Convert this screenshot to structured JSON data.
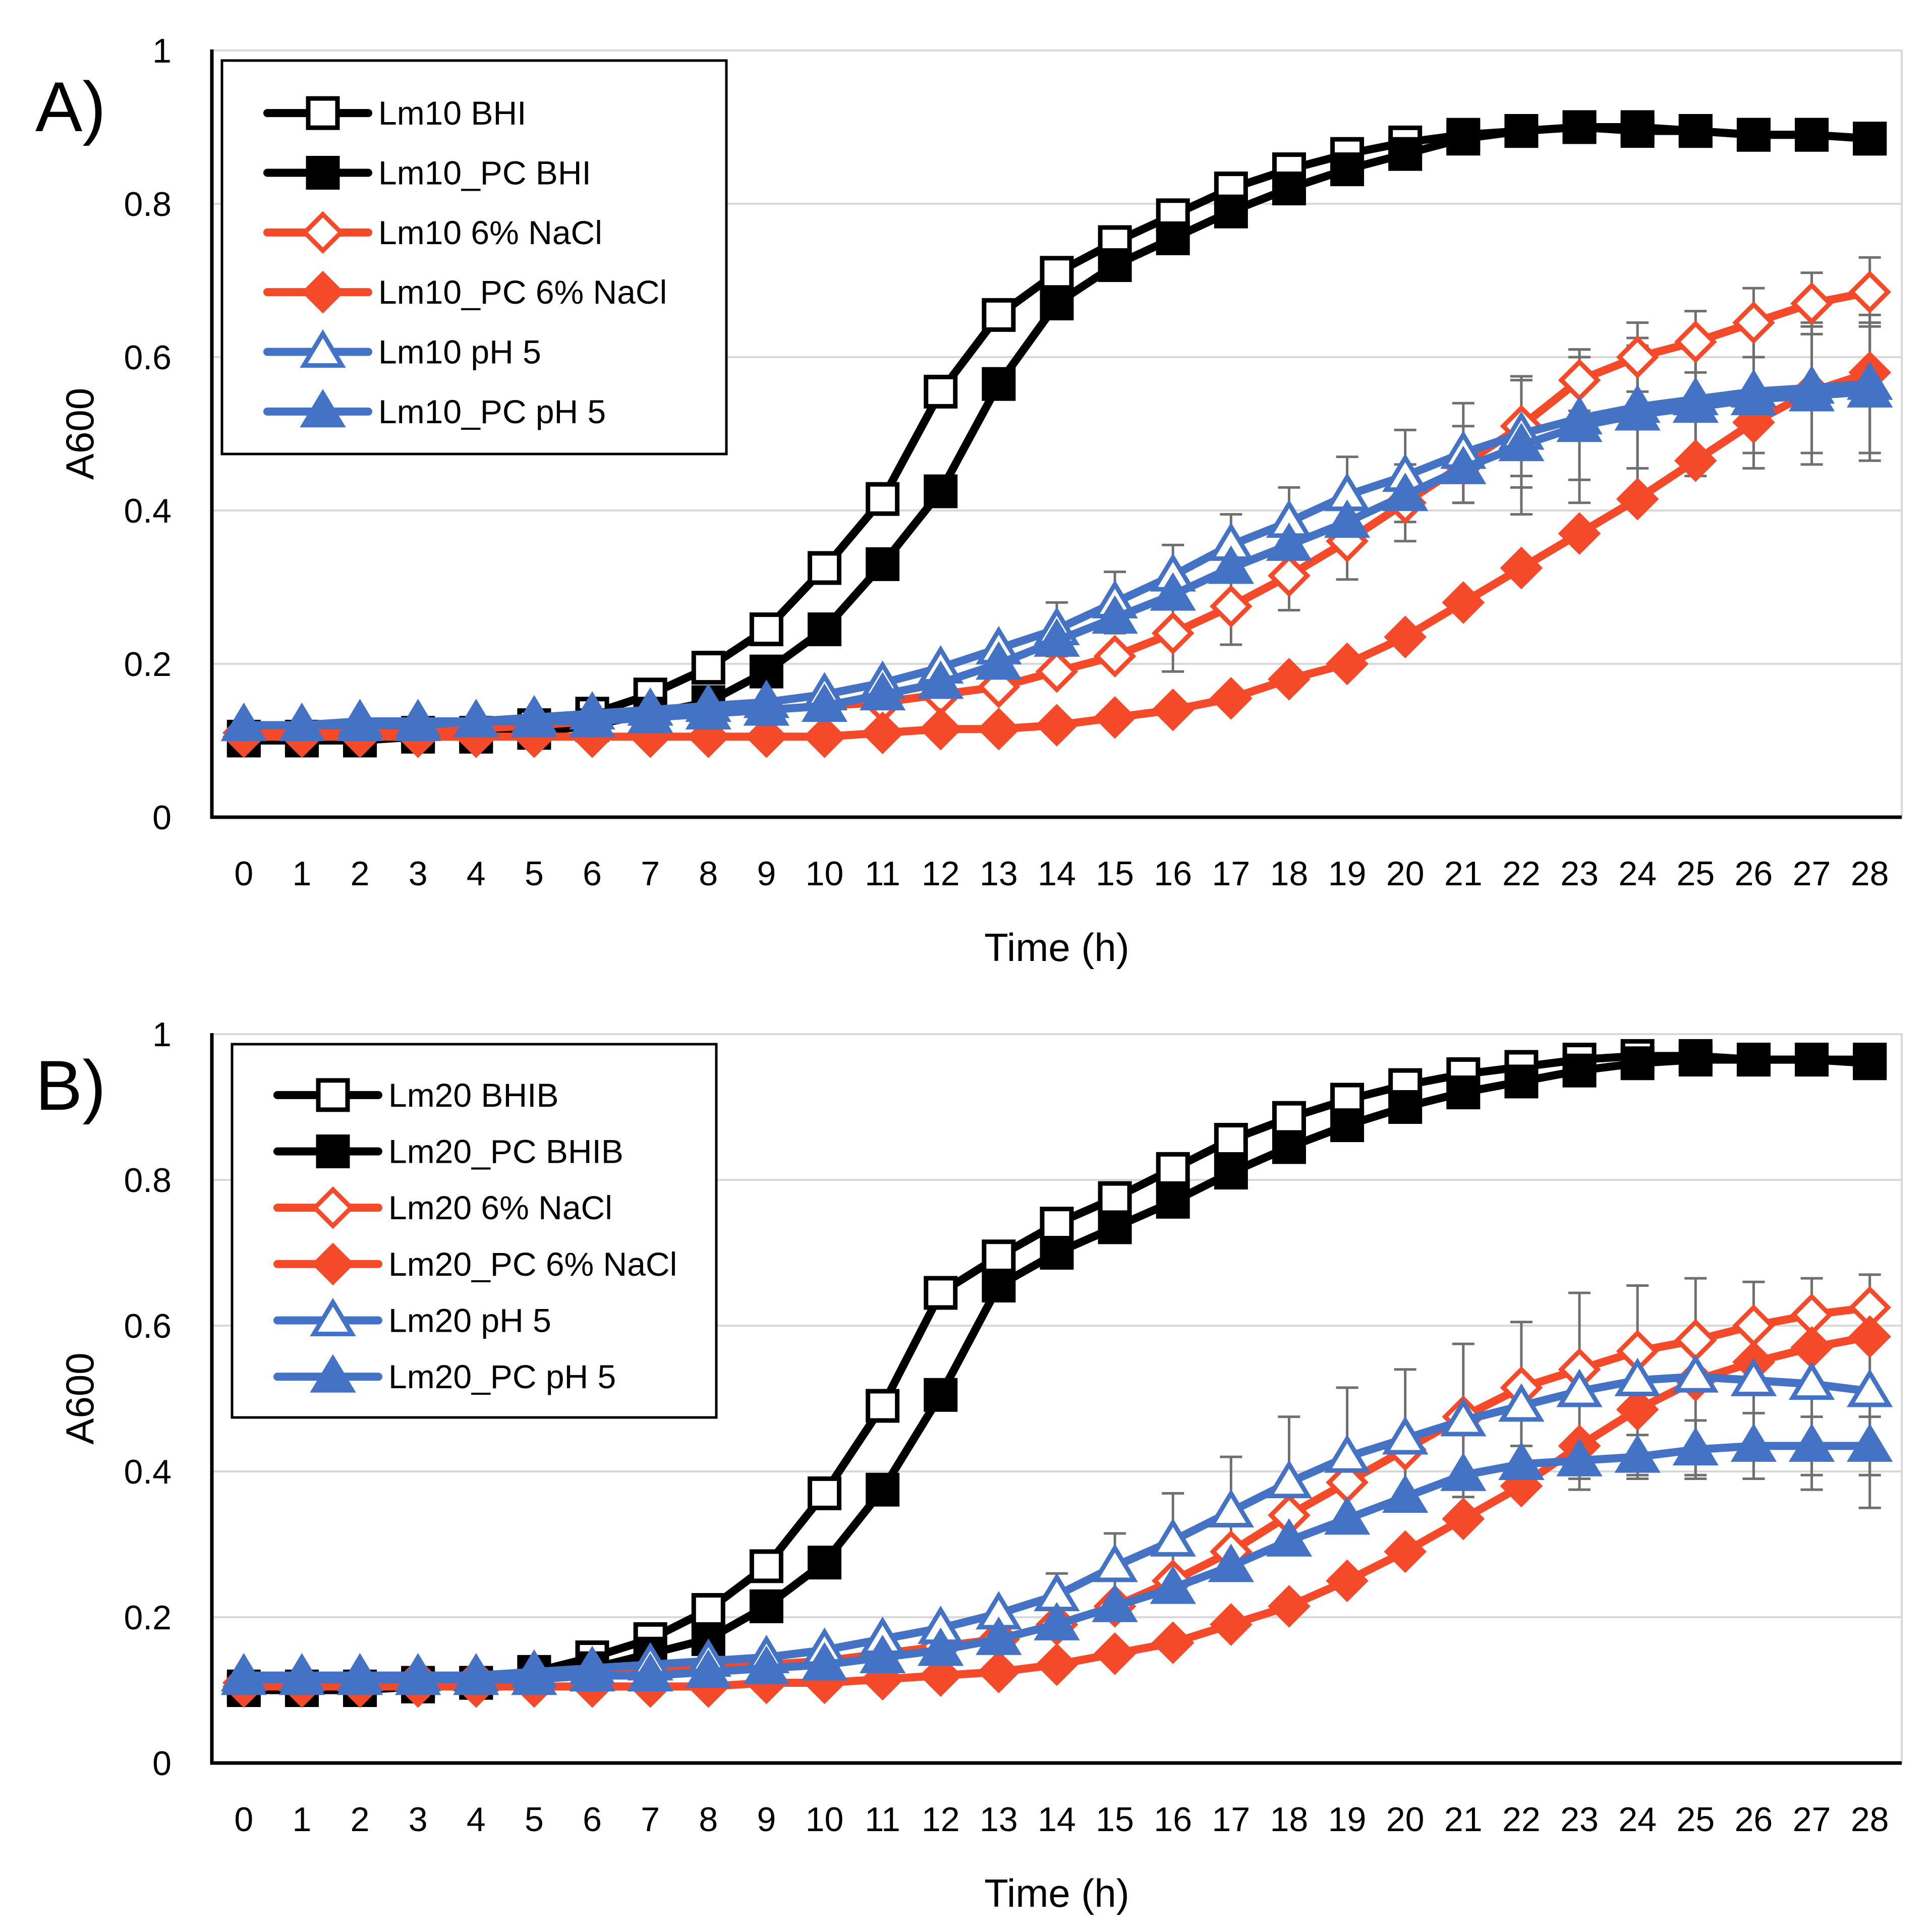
{
  "colors": {
    "black": "#000000",
    "red": "#F54A2A",
    "blue": "#4472C4",
    "grid": "#D9D9D9",
    "error": "#6F6F6F"
  },
  "chart_data": [
    {
      "type": "line",
      "panel_label": "A)",
      "xlabel": "Time (h)",
      "ylabel": "A600",
      "ylim": [
        0,
        1
      ],
      "yticks": [
        "0",
        "0.2",
        "0.4",
        "0.6",
        "0.8",
        "1"
      ],
      "grid": true,
      "legend_position": "top-left",
      "x": [
        "0",
        "1",
        "2",
        "3",
        "4",
        "5",
        "6",
        "7",
        "8",
        "9",
        "10",
        "11",
        "12",
        "13",
        "14",
        "15",
        "16",
        "17",
        "18",
        "19",
        "20",
        "21",
        "22",
        "23",
        "24",
        "25",
        "26",
        "27",
        "28"
      ],
      "series": [
        {
          "name": "Lm10 BHI",
          "color": "black",
          "marker": "square",
          "filled": false,
          "values": [
            0.105,
            0.105,
            0.105,
            0.11,
            0.11,
            0.12,
            0.135,
            0.16,
            0.195,
            0.245,
            0.325,
            0.415,
            0.555,
            0.655,
            0.71,
            0.75,
            0.785,
            0.82,
            0.845,
            0.865,
            0.88,
            0.89,
            0.895,
            0.9,
            0.9,
            0.895,
            0.89,
            0.89,
            0.885
          ],
          "errors": []
        },
        {
          "name": "Lm10_PC BHI",
          "color": "black",
          "marker": "square",
          "filled": true,
          "values": [
            0.1,
            0.1,
            0.1,
            0.105,
            0.105,
            0.11,
            0.12,
            0.135,
            0.15,
            0.19,
            0.245,
            0.33,
            0.425,
            0.565,
            0.67,
            0.72,
            0.755,
            0.79,
            0.82,
            0.845,
            0.865,
            0.885,
            0.895,
            0.9,
            0.895,
            0.895,
            0.89,
            0.89,
            0.885
          ],
          "errors": []
        },
        {
          "name": "Lm10 6% NaCl",
          "color": "red",
          "marker": "diamond",
          "filled": false,
          "values": [
            0.11,
            0.11,
            0.11,
            0.115,
            0.115,
            0.12,
            0.125,
            0.13,
            0.135,
            0.14,
            0.145,
            0.15,
            0.16,
            0.17,
            0.19,
            0.21,
            0.24,
            0.275,
            0.315,
            0.36,
            0.41,
            0.46,
            0.51,
            0.57,
            0.6,
            0.62,
            0.645,
            0.67,
            0.685
          ],
          "errors": [
            0,
            0,
            0,
            0,
            0,
            0,
            0,
            0,
            0,
            0,
            0,
            0,
            0,
            0,
            0,
            0,
            0.05,
            0.05,
            0.045,
            0.05,
            0.05,
            0.05,
            0.065,
            0.04,
            0.045,
            0.04,
            0.045,
            0.04,
            0.045
          ]
        },
        {
          "name": "Lm10_PC 6% NaCl",
          "color": "red",
          "marker": "diamond",
          "filled": true,
          "values": [
            0.105,
            0.105,
            0.105,
            0.105,
            0.105,
            0.105,
            0.105,
            0.105,
            0.105,
            0.105,
            0.105,
            0.11,
            0.115,
            0.115,
            0.12,
            0.13,
            0.14,
            0.155,
            0.18,
            0.2,
            0.235,
            0.28,
            0.325,
            0.37,
            0.415,
            0.465,
            0.515,
            0.555,
            0.58
          ],
          "errors": []
        },
        {
          "name": "Lm10 pH 5",
          "color": "blue",
          "marker": "triangle",
          "filled": false,
          "values": [
            0.12,
            0.12,
            0.125,
            0.125,
            0.125,
            0.13,
            0.135,
            0.14,
            0.145,
            0.15,
            0.16,
            0.175,
            0.195,
            0.22,
            0.245,
            0.28,
            0.315,
            0.355,
            0.385,
            0.42,
            0.445,
            0.475,
            0.5,
            0.52,
            0.535,
            0.545,
            0.555,
            0.56,
            0.565
          ],
          "errors": [
            0,
            0,
            0,
            0,
            0,
            0,
            0,
            0,
            0,
            0,
            0,
            0,
            0,
            0,
            0.035,
            0.04,
            0.04,
            0.04,
            0.045,
            0.05,
            0.06,
            0.065,
            0.07,
            0.08,
            0.08,
            0.08,
            0.08,
            0.085,
            0.09
          ]
        },
        {
          "name": "Lm10_PC pH 5",
          "color": "blue",
          "marker": "triangle",
          "filled": true,
          "values": [
            0.12,
            0.12,
            0.12,
            0.12,
            0.125,
            0.125,
            0.125,
            0.13,
            0.135,
            0.14,
            0.145,
            0.16,
            0.175,
            0.2,
            0.23,
            0.26,
            0.29,
            0.325,
            0.355,
            0.385,
            0.42,
            0.455,
            0.485,
            0.51,
            0.525,
            0.535,
            0.545,
            0.55,
            0.555
          ],
          "errors": [
            0,
            0,
            0,
            0,
            0,
            0,
            0,
            0,
            0,
            0,
            0,
            0,
            0,
            0,
            0,
            0,
            0,
            0,
            0,
            0,
            0,
            0,
            0.09,
            0.1,
            0.1,
            0.09,
            0.09,
            0.09,
            0.09
          ]
        }
      ]
    },
    {
      "type": "line",
      "panel_label": "B)",
      "xlabel": "Time (h)",
      "ylabel": "A600",
      "ylim": [
        0,
        1
      ],
      "yticks": [
        "0",
        "0.2",
        "0.4",
        "0.6",
        "0.8",
        "1"
      ],
      "grid": true,
      "legend_position": "top-left",
      "x": [
        "0",
        "1",
        "2",
        "3",
        "4",
        "5",
        "6",
        "7",
        "8",
        "9",
        "10",
        "11",
        "12",
        "13",
        "14",
        "15",
        "16",
        "17",
        "18",
        "19",
        "20",
        "21",
        "22",
        "23",
        "24",
        "25",
        "26",
        "27",
        "28"
      ],
      "series": [
        {
          "name": "Lm20 BHIB",
          "color": "black",
          "marker": "square",
          "filled": false,
          "values": [
            0.105,
            0.105,
            0.105,
            0.11,
            0.11,
            0.125,
            0.145,
            0.17,
            0.21,
            0.27,
            0.37,
            0.49,
            0.645,
            0.695,
            0.74,
            0.775,
            0.815,
            0.855,
            0.885,
            0.91,
            0.93,
            0.945,
            0.955,
            0.965,
            0.97,
            0.97,
            0.965,
            0.965,
            0.96
          ],
          "errors": []
        },
        {
          "name": "Lm20_PC BHIB",
          "color": "black",
          "marker": "square",
          "filled": true,
          "values": [
            0.1,
            0.1,
            0.1,
            0.105,
            0.11,
            0.12,
            0.13,
            0.15,
            0.17,
            0.215,
            0.275,
            0.375,
            0.505,
            0.655,
            0.7,
            0.735,
            0.77,
            0.81,
            0.845,
            0.875,
            0.9,
            0.92,
            0.935,
            0.95,
            0.96,
            0.965,
            0.965,
            0.965,
            0.965
          ],
          "errors": []
        },
        {
          "name": "Lm20 6% NaCl",
          "color": "red",
          "marker": "diamond",
          "filled": false,
          "values": [
            0.11,
            0.11,
            0.11,
            0.115,
            0.115,
            0.115,
            0.12,
            0.125,
            0.13,
            0.135,
            0.14,
            0.15,
            0.16,
            0.17,
            0.19,
            0.215,
            0.25,
            0.29,
            0.34,
            0.385,
            0.43,
            0.475,
            0.515,
            0.54,
            0.565,
            0.58,
            0.6,
            0.615,
            0.625
          ],
          "errors": []
        },
        {
          "name": "Lm20_PC 6% NaCl",
          "color": "red",
          "marker": "diamond",
          "filled": true,
          "values": [
            0.105,
            0.105,
            0.105,
            0.105,
            0.105,
            0.105,
            0.105,
            0.105,
            0.105,
            0.11,
            0.11,
            0.115,
            0.12,
            0.125,
            0.135,
            0.15,
            0.165,
            0.19,
            0.215,
            0.25,
            0.29,
            0.335,
            0.38,
            0.435,
            0.485,
            0.525,
            0.55,
            0.57,
            0.585
          ],
          "errors": []
        },
        {
          "name": "Lm20 pH 5",
          "color": "blue",
          "marker": "triangle",
          "filled": false,
          "values": [
            0.12,
            0.12,
            0.12,
            0.12,
            0.12,
            0.125,
            0.13,
            0.135,
            0.14,
            0.145,
            0.155,
            0.17,
            0.185,
            0.205,
            0.23,
            0.27,
            0.305,
            0.345,
            0.385,
            0.42,
            0.445,
            0.47,
            0.49,
            0.51,
            0.525,
            0.53,
            0.525,
            0.52,
            0.51
          ],
          "errors": [
            0,
            0,
            0,
            0,
            0,
            0,
            0,
            0,
            0,
            0,
            0,
            0,
            0,
            0,
            0.03,
            0.045,
            0.065,
            0.075,
            0.09,
            0.095,
            0.095,
            0.105,
            0.115,
            0.135,
            0.13,
            0.135,
            0.135,
            0.145,
            0.16
          ]
        },
        {
          "name": "Lm20_PC pH 5",
          "color": "blue",
          "marker": "triangle",
          "filled": true,
          "values": [
            0.115,
            0.115,
            0.115,
            0.115,
            0.115,
            0.115,
            0.12,
            0.12,
            0.125,
            0.13,
            0.135,
            0.145,
            0.155,
            0.17,
            0.19,
            0.215,
            0.24,
            0.27,
            0.305,
            0.335,
            0.365,
            0.395,
            0.41,
            0.415,
            0.42,
            0.43,
            0.435,
            0.435,
            0.435
          ],
          "errors": [
            0,
            0,
            0,
            0,
            0,
            0,
            0,
            0,
            0,
            0,
            0,
            0,
            0,
            0,
            0,
            0,
            0,
            0,
            0,
            0,
            0,
            0,
            0.025,
            0.025,
            0.03,
            0.04,
            0.045,
            0.04,
            0.04
          ]
        }
      ]
    }
  ]
}
